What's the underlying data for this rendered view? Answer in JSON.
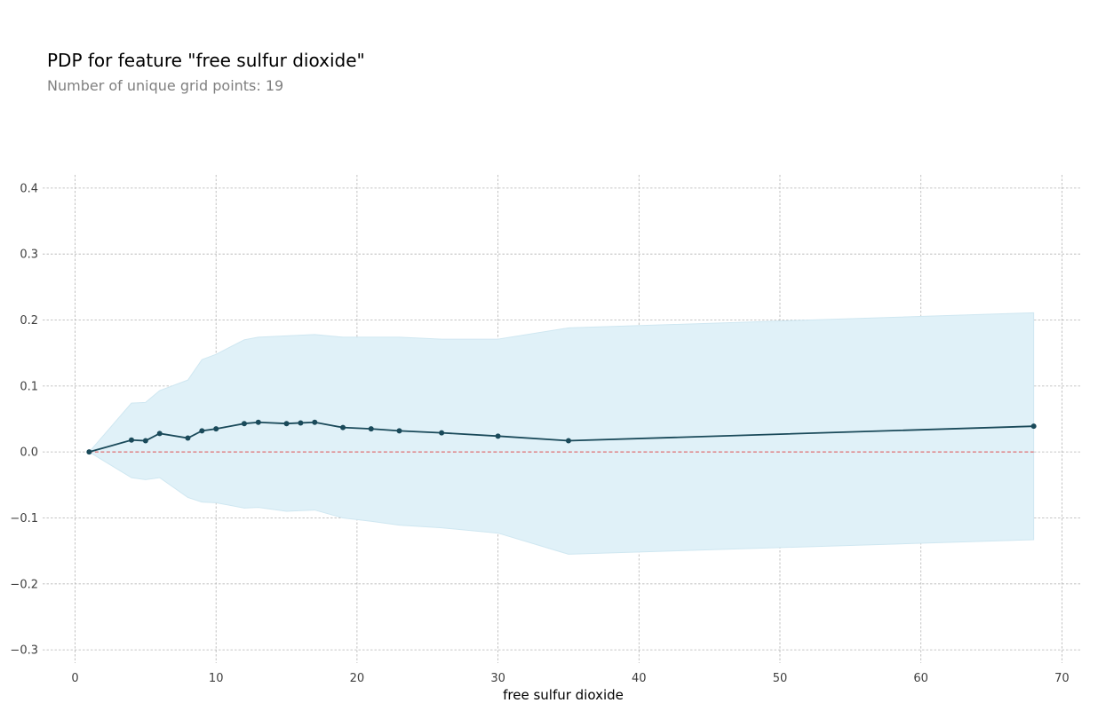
{
  "chart_data": {
    "type": "line",
    "title": "PDP for feature \"free sulfur dioxide\"",
    "subtitle": "Number of unique grid points: 19",
    "xlabel": "free sulfur dioxide",
    "ylabel": "",
    "xlim": [
      -2.3,
      71.3
    ],
    "ylim": [
      -0.32,
      0.42
    ],
    "xticks": [
      0,
      10,
      20,
      30,
      40,
      50,
      60,
      70
    ],
    "xtick_labels": [
      "0",
      "10",
      "20",
      "30",
      "40",
      "50",
      "60",
      "70"
    ],
    "yticks": [
      0.4,
      0.3,
      0.2,
      0.1,
      0.0,
      -0.1,
      -0.2,
      -0.3
    ],
    "ytick_labels": [
      "0.4",
      "0.3",
      "0.2",
      "0.1",
      "0.0",
      "−0.1",
      "−0.2",
      "−0.3"
    ],
    "grid": true,
    "x": [
      1,
      4,
      5,
      6,
      8,
      9,
      10,
      12,
      13,
      15,
      16,
      17,
      19,
      21,
      23,
      26,
      30,
      35,
      68
    ],
    "series": [
      {
        "values": [
          0.0,
          0.018,
          0.017,
          0.028,
          0.021,
          0.032,
          0.035,
          0.043,
          0.045,
          0.043,
          0.044,
          0.045,
          0.037,
          0.035,
          0.032,
          0.029,
          0.024,
          0.017,
          0.039
        ],
        "upper": [
          0.0,
          0.074,
          0.075,
          0.093,
          0.109,
          0.14,
          0.148,
          0.17,
          0.174,
          0.176,
          0.177,
          0.178,
          0.174,
          0.174,
          0.174,
          0.171,
          0.171,
          0.188,
          0.211
        ],
        "lower": [
          0.0,
          -0.039,
          -0.042,
          -0.039,
          -0.069,
          -0.076,
          -0.077,
          -0.085,
          -0.084,
          -0.09,
          -0.089,
          -0.088,
          -0.1,
          -0.105,
          -0.111,
          -0.115,
          -0.123,
          -0.155,
          -0.133
        ]
      }
    ],
    "reference_line": 0.0,
    "colors": {
      "line": "#1a4a5a",
      "band_fill": "#e0f1f8",
      "band_edge": "#cfe7f1",
      "reference": "#e05050",
      "grid": "#b4b4b4"
    }
  }
}
